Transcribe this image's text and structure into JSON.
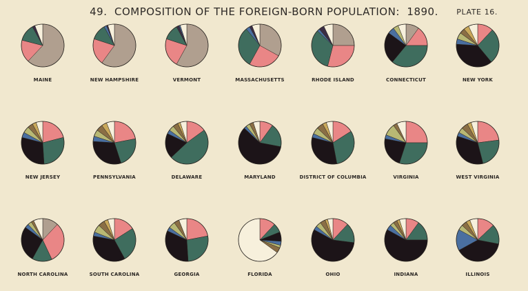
{
  "header": {
    "number": "49.",
    "title": "COMPOSITION OF THE FOREIGN-BORN POPULATION:",
    "year": "1890.",
    "plate": "PLATE 16."
  },
  "colors": {
    "germany": "#1c1418",
    "ireland": "#e98686",
    "england_wales": "#3f6d5e",
    "canada": "#b09f8f",
    "scotland": "#f7f0dc",
    "other_a": "#4a6fa0",
    "other_b": "#b8b874",
    "other_c": "#8a6e45",
    "other_d": "#3b2d44",
    "other_e": "#c9a85a",
    "background": "#f1e8cf",
    "outline": "#2a2622"
  },
  "chart_data": {
    "type": "pie",
    "grid": false,
    "legend": "none",
    "pies": [
      {
        "label": "MAINE",
        "slices": [
          [
            "canada",
            0.62
          ],
          [
            "ireland",
            0.17
          ],
          [
            "england_wales",
            0.13
          ],
          [
            "other_d",
            0.02
          ],
          [
            "scotland",
            0.06
          ]
        ]
      },
      {
        "label": "NEW HAMPSHIRE",
        "slices": [
          [
            "canada",
            0.6
          ],
          [
            "ireland",
            0.2
          ],
          [
            "england_wales",
            0.12
          ],
          [
            "other_a",
            0.02
          ],
          [
            "other_d",
            0.01
          ],
          [
            "scotland",
            0.05
          ]
        ]
      },
      {
        "label": "VERMONT",
        "slices": [
          [
            "canada",
            0.58
          ],
          [
            "ireland",
            0.22
          ],
          [
            "england_wales",
            0.12
          ],
          [
            "other_d",
            0.02
          ],
          [
            "other_a",
            0.01
          ],
          [
            "scotland",
            0.05
          ]
        ]
      },
      {
        "label": "MASSACHUSETTS",
        "slices": [
          [
            "canada",
            0.33
          ],
          [
            "ireland",
            0.25
          ],
          [
            "england_wales",
            0.31
          ],
          [
            "other_a",
            0.03
          ],
          [
            "other_d",
            0.02
          ],
          [
            "scotland",
            0.06
          ]
        ]
      },
      {
        "label": "RHODE ISLAND",
        "slices": [
          [
            "canada",
            0.25
          ],
          [
            "ireland",
            0.29
          ],
          [
            "england_wales",
            0.33
          ],
          [
            "other_a",
            0.02
          ],
          [
            "other_d",
            0.04
          ],
          [
            "scotland",
            0.07
          ]
        ]
      },
      {
        "label": "CONNECTICUT",
        "slices": [
          [
            "canada",
            0.1
          ],
          [
            "ireland",
            0.15
          ],
          [
            "england_wales",
            0.36
          ],
          [
            "germany",
            0.24
          ],
          [
            "other_a",
            0.05
          ],
          [
            "other_b",
            0.04
          ],
          [
            "scotland",
            0.06
          ]
        ]
      },
      {
        "label": "NEW YORK",
        "slices": [
          [
            "ireland",
            0.12
          ],
          [
            "england_wales",
            0.27
          ],
          [
            "germany",
            0.37
          ],
          [
            "other_a",
            0.04
          ],
          [
            "other_b",
            0.05
          ],
          [
            "other_c",
            0.04
          ],
          [
            "other_e",
            0.04
          ],
          [
            "scotland",
            0.07
          ]
        ]
      },
      {
        "label": "NEW JERSEY",
        "slices": [
          [
            "ireland",
            0.21
          ],
          [
            "england_wales",
            0.28
          ],
          [
            "germany",
            0.3
          ],
          [
            "other_a",
            0.04
          ],
          [
            "other_b",
            0.05
          ],
          [
            "other_c",
            0.04
          ],
          [
            "other_e",
            0.03
          ],
          [
            "scotland",
            0.05
          ]
        ]
      },
      {
        "label": "PENNSYLVANIA",
        "slices": [
          [
            "ireland",
            0.22
          ],
          [
            "england_wales",
            0.23
          ],
          [
            "germany",
            0.31
          ],
          [
            "other_a",
            0.04
          ],
          [
            "other_b",
            0.05
          ],
          [
            "other_c",
            0.05
          ],
          [
            "other_e",
            0.04
          ],
          [
            "scotland",
            0.06
          ]
        ]
      },
      {
        "label": "DELAWARE",
        "slices": [
          [
            "ireland",
            0.15
          ],
          [
            "england_wales",
            0.48
          ],
          [
            "germany",
            0.19
          ],
          [
            "other_a",
            0.03
          ],
          [
            "other_b",
            0.04
          ],
          [
            "other_c",
            0.04
          ],
          [
            "other_e",
            0.02
          ],
          [
            "scotland",
            0.05
          ]
        ]
      },
      {
        "label": "MARYLAND",
        "slices": [
          [
            "ireland",
            0.1
          ],
          [
            "england_wales",
            0.18
          ],
          [
            "germany",
            0.59
          ],
          [
            "other_a",
            0.02
          ],
          [
            "other_b",
            0.03
          ],
          [
            "other_c",
            0.03
          ],
          [
            "scotland",
            0.05
          ]
        ]
      },
      {
        "label": "DISTRICT OF COLUMBIA",
        "slices": [
          [
            "ireland",
            0.16
          ],
          [
            "england_wales",
            0.31
          ],
          [
            "germany",
            0.32
          ],
          [
            "other_a",
            0.03
          ],
          [
            "other_b",
            0.05
          ],
          [
            "other_c",
            0.05
          ],
          [
            "other_e",
            0.03
          ],
          [
            "scotland",
            0.05
          ]
        ]
      },
      {
        "label": "VIRGINIA",
        "slices": [
          [
            "ireland",
            0.25
          ],
          [
            "england_wales",
            0.3
          ],
          [
            "germany",
            0.23
          ],
          [
            "other_a",
            0.03
          ],
          [
            "other_b",
            0.09
          ],
          [
            "other_c",
            0.03
          ],
          [
            "scotland",
            0.07
          ]
        ]
      },
      {
        "label": "WEST VIRGINIA",
        "slices": [
          [
            "ireland",
            0.23
          ],
          [
            "england_wales",
            0.23
          ],
          [
            "germany",
            0.34
          ],
          [
            "other_a",
            0.03
          ],
          [
            "other_b",
            0.04
          ],
          [
            "other_c",
            0.05
          ],
          [
            "other_e",
            0.03
          ],
          [
            "scotland",
            0.05
          ]
        ]
      },
      {
        "label": "NORTH CAROLINA",
        "slices": [
          [
            "canada",
            0.12
          ],
          [
            "ireland",
            0.31
          ],
          [
            "england_wales",
            0.15
          ],
          [
            "germany",
            0.27
          ],
          [
            "other_a",
            0.03
          ],
          [
            "other_b",
            0.03
          ],
          [
            "other_c",
            0.02
          ],
          [
            "scotland",
            0.07
          ]
        ]
      },
      {
        "label": "SOUTH CAROLINA",
        "slices": [
          [
            "ireland",
            0.16
          ],
          [
            "england_wales",
            0.26
          ],
          [
            "germany",
            0.36
          ],
          [
            "other_a",
            0.03
          ],
          [
            "other_b",
            0.06
          ],
          [
            "other_c",
            0.05
          ],
          [
            "other_e",
            0.03
          ],
          [
            "scotland",
            0.05
          ]
        ]
      },
      {
        "label": "GEORGIA",
        "slices": [
          [
            "ireland",
            0.22
          ],
          [
            "england_wales",
            0.27
          ],
          [
            "germany",
            0.33
          ],
          [
            "other_a",
            0.03
          ],
          [
            "other_b",
            0.05
          ],
          [
            "other_c",
            0.04
          ],
          [
            "scotland",
            0.06
          ]
        ]
      },
      {
        "label": "FLORIDA",
        "slices": [
          [
            "ireland",
            0.12
          ],
          [
            "england_wales",
            0.07
          ],
          [
            "germany",
            0.07
          ],
          [
            "other_a",
            0.03
          ],
          [
            "other_b",
            0.02
          ],
          [
            "other_c",
            0.04
          ],
          [
            "scotland",
            0.65
          ]
        ]
      },
      {
        "label": "OHIO",
        "slices": [
          [
            "ireland",
            0.12
          ],
          [
            "england_wales",
            0.15
          ],
          [
            "germany",
            0.56
          ],
          [
            "other_a",
            0.03
          ],
          [
            "other_b",
            0.04
          ],
          [
            "other_c",
            0.04
          ],
          [
            "other_e",
            0.02
          ],
          [
            "scotland",
            0.04
          ]
        ]
      },
      {
        "label": "INDIANA",
        "slices": [
          [
            "ireland",
            0.1
          ],
          [
            "england_wales",
            0.15
          ],
          [
            "germany",
            0.58
          ],
          [
            "other_a",
            0.04
          ],
          [
            "other_b",
            0.03
          ],
          [
            "other_c",
            0.03
          ],
          [
            "other_e",
            0.02
          ],
          [
            "scotland",
            0.05
          ]
        ]
      },
      {
        "label": "ILLINOIS",
        "slices": [
          [
            "ireland",
            0.13
          ],
          [
            "england_wales",
            0.15
          ],
          [
            "germany",
            0.39
          ],
          [
            "other_a",
            0.16
          ],
          [
            "other_b",
            0.04
          ],
          [
            "other_c",
            0.04
          ],
          [
            "other_e",
            0.03
          ],
          [
            "scotland",
            0.06
          ]
        ]
      }
    ]
  }
}
